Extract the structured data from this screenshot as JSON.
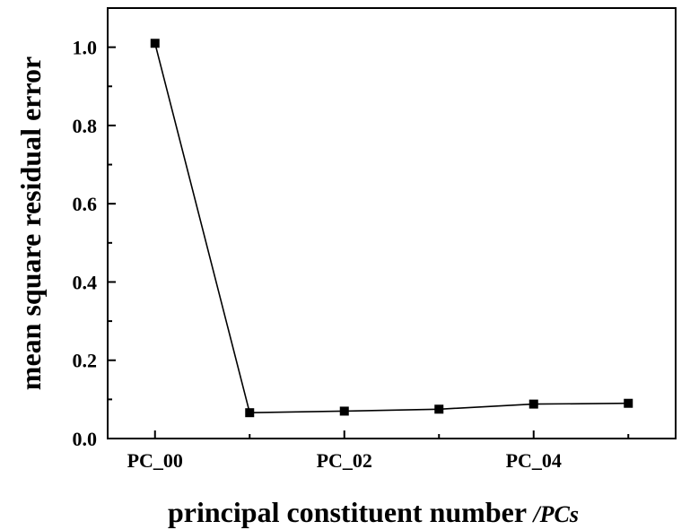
{
  "chart_data": {
    "type": "line",
    "xlabel_main": "principal constituent number ",
    "xlabel_slash": "/",
    "xlabel_unit": "PCs",
    "ylabel": "mean square residual error",
    "x": [
      0,
      1,
      2,
      3,
      4,
      5
    ],
    "x_tick_labels": [
      {
        "x": 0,
        "label": "PC_00"
      },
      {
        "x": 2,
        "label": "PC_02"
      },
      {
        "x": 4,
        "label": "PC_04"
      }
    ],
    "y_ticks": [
      0.0,
      0.2,
      0.4,
      0.6,
      0.8,
      1.0
    ],
    "y_tick_labels": [
      "0.0",
      "0.2",
      "0.4",
      "0.6",
      "0.8",
      "1.0"
    ],
    "series": [
      {
        "values": [
          1.01,
          0.066,
          0.07,
          0.075,
          0.088,
          0.09
        ],
        "color": "#000000",
        "marker": "square"
      }
    ],
    "xlim": [
      -0.5,
      5.5
    ],
    "ylim": [
      0.0,
      1.1
    ],
    "grid": false,
    "legend": "none"
  }
}
